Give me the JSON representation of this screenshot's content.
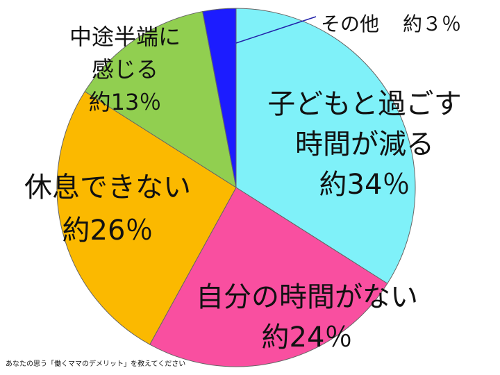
{
  "chart_data": {
    "type": "pie",
    "categories": [
      [
        "子どもと過ごす",
        "時間が減る"
      ],
      [
        "自分の時間がない"
      ],
      [
        "休息できない"
      ],
      [
        "中途半端に",
        "感じる"
      ],
      [
        "その他"
      ]
    ],
    "values": [
      34,
      24,
      26,
      13,
      3
    ],
    "value_labels": [
      "約34％",
      "約24％",
      "約26％",
      "約13％",
      "約３％"
    ],
    "colors": [
      "#7ff1f9",
      "#f94fa0",
      "#fbb900",
      "#91cf50",
      "#1c1cff"
    ],
    "footnote": "あなたの思う「働くママのデメリット」を教えてください"
  }
}
